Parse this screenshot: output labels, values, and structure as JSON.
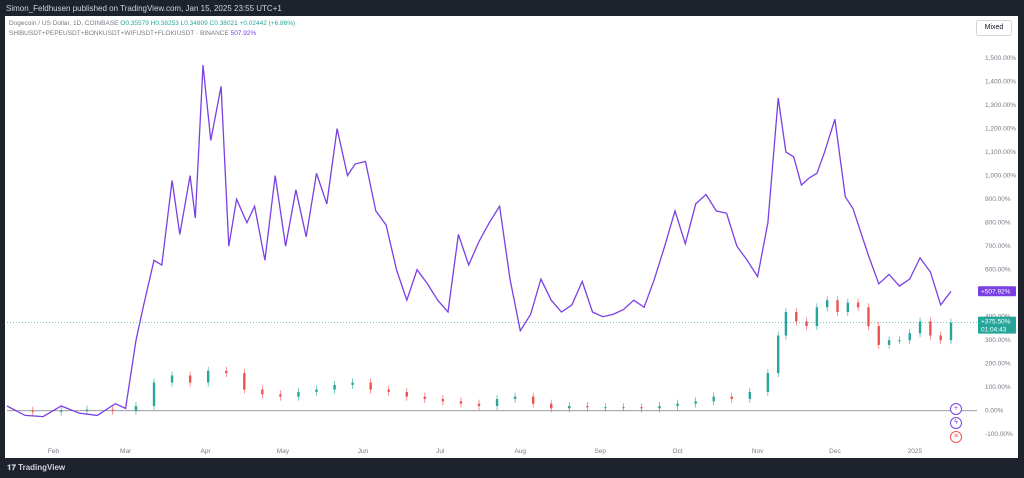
{
  "header": {
    "published": "Simon_Feldhusen published on TradingView.com, Jan 15, 2025 23:55 UTC+1"
  },
  "legend": {
    "series1_label": "Dogecoin / US Dollar, 1D, COINBASE",
    "series1_ohlc": "O0.35579  H0.38253  L0.34809  C0.38021  +0.02442 (+6.86%)",
    "series2_label": "SHIBUSDT+PEPEUSDT+BONKUSDT+WIFUSDT+FLOKIUSDT · BINANCE",
    "series2_value": "507.92%"
  },
  "toolbar": {
    "mode": "Mixed"
  },
  "footer": {
    "logo": "TradingView"
  },
  "badges": {
    "purple": "+507.92%",
    "green_pct": "+375.50%",
    "green_time": "01:04:43"
  },
  "colors": {
    "purple": "#7b3fe4",
    "up": "#26a69a",
    "down": "#ef5350",
    "zero_line": "#787b86"
  },
  "icons": [
    "plus-circle-icon",
    "lightning-icon",
    "us-flag-icon"
  ],
  "chart_data": {
    "type": "line",
    "x_labels": [
      "Feb",
      "Mar",
      "Apr",
      "May",
      "Jun",
      "Jul",
      "Aug",
      "Sep",
      "Oct",
      "Nov",
      "Dec",
      "2025"
    ],
    "y_ticks": [
      "1,500.00%",
      "1,400.00%",
      "1,300.00%",
      "1,200.00%",
      "1,100.00%",
      "1,000.00%",
      "900.00%",
      "800.00%",
      "700.00%",
      "600.00%",
      "500.00%",
      "400.00%",
      "300.00%",
      "200.00%",
      "100.00%",
      "0.00%",
      "-100.00%"
    ],
    "ylim": [
      -150,
      1560
    ],
    "series": [
      {
        "color": "#7b3fe4",
        "x": [
          "Jan 15",
          "Jan 22",
          "Jan 29",
          "Feb 5",
          "Feb 12",
          "Feb 19",
          "Feb 26",
          "Mar 1",
          "Mar 5",
          "Mar 8",
          "Mar 12",
          "Mar 15",
          "Mar 19",
          "Mar 22",
          "Mar 26",
          "Mar 28",
          "Mar 31",
          "Apr 3",
          "Apr 7",
          "Apr 10",
          "Apr 13",
          "Apr 17",
          "Apr 20",
          "Apr 24",
          "Apr 28",
          "May 2",
          "May 6",
          "May 10",
          "May 14",
          "May 18",
          "May 22",
          "May 26",
          "May 29",
          "Jun 2",
          "Jun 6",
          "Jun 10",
          "Jun 14",
          "Jun 18",
          "Jun 22",
          "Jun 26",
          "Jun 30",
          "Jul 4",
          "Jul 8",
          "Jul 12",
          "Jul 16",
          "Jul 20",
          "Jul 24",
          "Jul 28",
          "Aug 1",
          "Aug 5",
          "Aug 9",
          "Aug 13",
          "Aug 17",
          "Aug 21",
          "Aug 25",
          "Aug 29",
          "Sep 2",
          "Sep 6",
          "Sep 10",
          "Sep 14",
          "Sep 18",
          "Sep 22",
          "Sep 26",
          "Sep 30",
          "Oct 4",
          "Oct 8",
          "Oct 12",
          "Oct 16",
          "Oct 20",
          "Oct 24",
          "Oct 28",
          "Nov 1",
          "Nov 5",
          "Nov 9",
          "Nov 12",
          "Nov 15",
          "Nov 18",
          "Nov 21",
          "Nov 24",
          "Nov 27",
          "Dec 1",
          "Dec 5",
          "Dec 8",
          "Dec 11",
          "Dec 14",
          "Dec 18",
          "Dec 22",
          "Dec 26",
          "Dec 30",
          "Jan 3",
          "Jan 7",
          "Jan 11",
          "Jan 15"
        ],
        "y": [
          20,
          -20,
          -25,
          20,
          -10,
          -20,
          30,
          10,
          300,
          450,
          640,
          620,
          980,
          750,
          1000,
          820,
          1470,
          1150,
          1380,
          700,
          900,
          800,
          870,
          640,
          1000,
          700,
          940,
          740,
          1010,
          880,
          1200,
          1000,
          1050,
          1060,
          850,
          790,
          600,
          470,
          600,
          540,
          470,
          420,
          750,
          620,
          720,
          800,
          870,
          560,
          340,
          410,
          560,
          470,
          420,
          450,
          550,
          420,
          400,
          410,
          430,
          470,
          440,
          560,
          700,
          850,
          710,
          880,
          920,
          850,
          840,
          700,
          640,
          570,
          800,
          1330,
          1100,
          1080,
          960,
          990,
          1010,
          1100,
          1240,
          910,
          860,
          760,
          660,
          540,
          580,
          530,
          560,
          650,
          590,
          450,
          508
        ]
      },
      {
        "type": "candlestick",
        "color_up": "#26a69a",
        "color_down": "#ef5350",
        "x": [
          "Jan 15",
          "Jan 25",
          "Feb 5",
          "Feb 15",
          "Feb 25",
          "Mar 5",
          "Mar 12",
          "Mar 19",
          "Mar 26",
          "Apr 2",
          "Apr 9",
          "Apr 16",
          "Apr 23",
          "Apr 30",
          "May 7",
          "May 14",
          "May 21",
          "May 28",
          "Jun 4",
          "Jun 11",
          "Jun 18",
          "Jun 25",
          "Jul 2",
          "Jul 9",
          "Jul 16",
          "Jul 23",
          "Jul 30",
          "Aug 6",
          "Aug 13",
          "Aug 20",
          "Aug 27",
          "Sep 3",
          "Sep 10",
          "Sep 17",
          "Sep 24",
          "Oct 1",
          "Oct 8",
          "Oct 15",
          "Oct 22",
          "Oct 29",
          "Nov 5",
          "Nov 9",
          "Nov 12",
          "Nov 16",
          "Nov 20",
          "Nov 24",
          "Nov 28",
          "Dec 2",
          "Dec 6",
          "Dec 10",
          "Dec 14",
          "Dec 18",
          "Dec 22",
          "Dec 26",
          "Dec 30",
          "Jan 3",
          "Jan 7",
          "Jan 11",
          "Jan 15"
        ],
        "y": [
          0,
          -5,
          0,
          5,
          0,
          20,
          120,
          150,
          120,
          170,
          160,
          90,
          70,
          60,
          80,
          90,
          110,
          120,
          90,
          80,
          60,
          50,
          40,
          30,
          20,
          50,
          60,
          30,
          10,
          20,
          15,
          15,
          15,
          10,
          20,
          30,
          40,
          60,
          50,
          80,
          160,
          320,
          420,
          380,
          360,
          440,
          470,
          420,
          460,
          440,
          360,
          280,
          300,
          300,
          330,
          380,
          320,
          300,
          375
        ]
      }
    ]
  }
}
